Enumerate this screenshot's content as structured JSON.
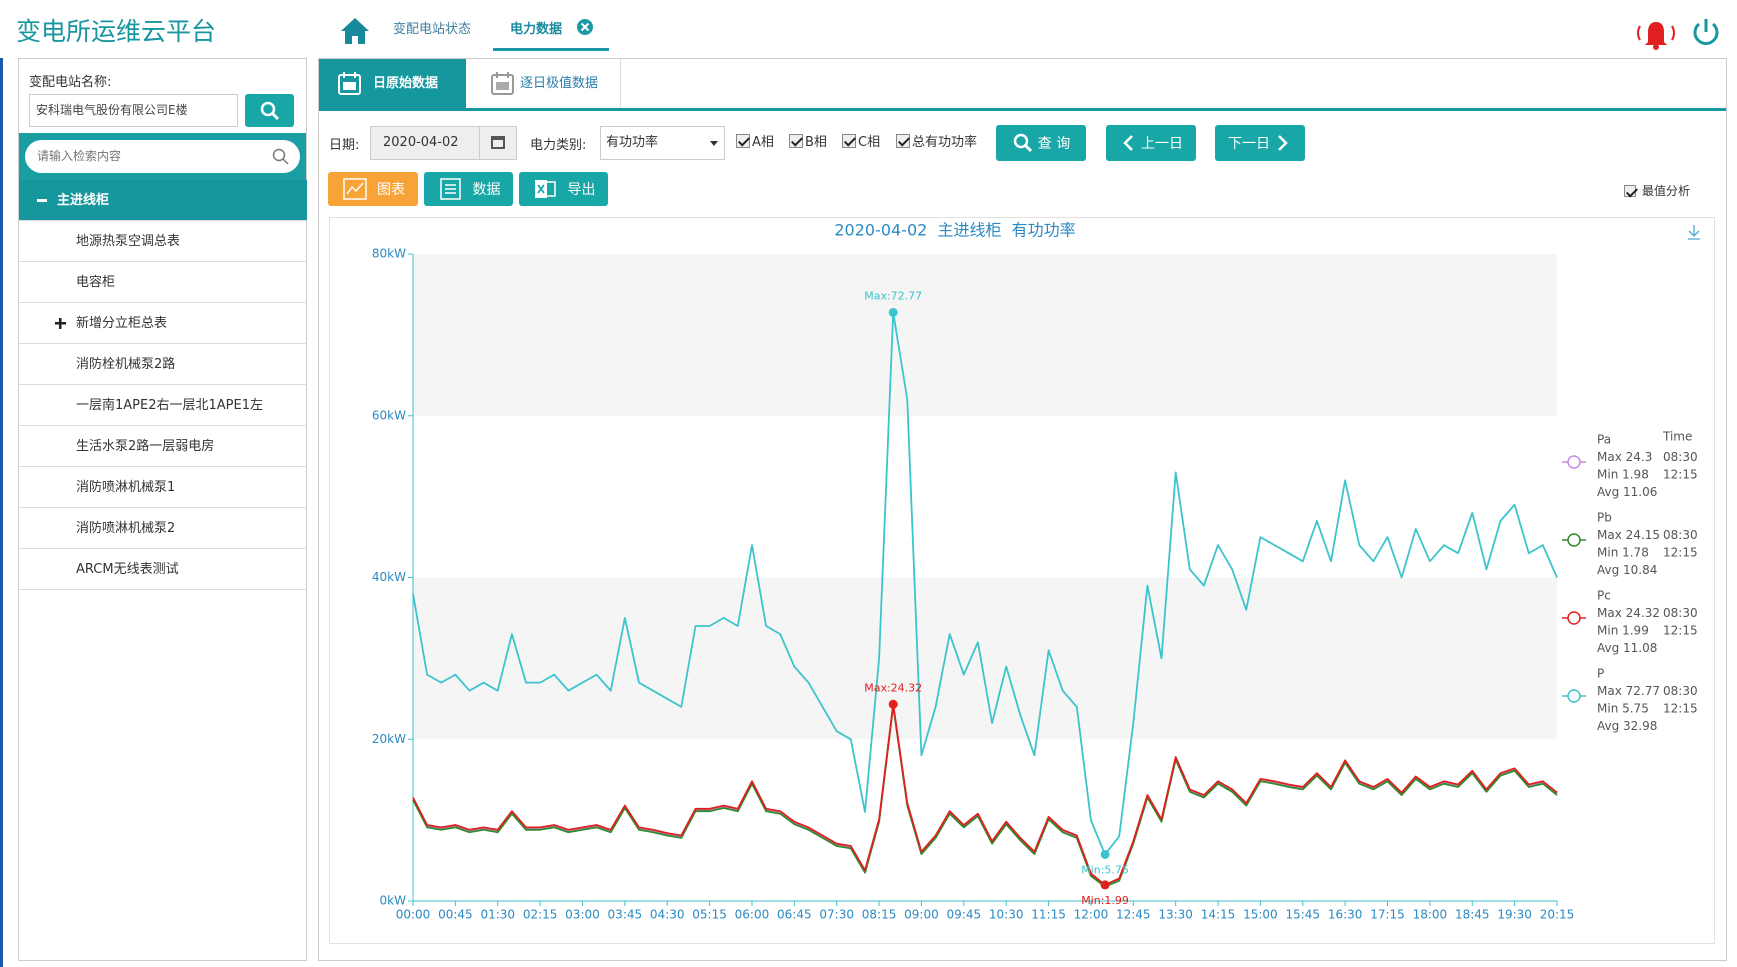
{
  "header": {
    "title": "变电所运维云平台",
    "tabs": [
      "变配电站状态",
      "电力数据"
    ]
  },
  "sidebar": {
    "station_label": "变配电站名称:",
    "station_value": "安科瑞电气股份有限公司E楼",
    "search_placeholder": "请输入检索内容",
    "tree": [
      "主进线柜",
      "地源热泵空调总表",
      "电容柜",
      "新增分立柜总表",
      "消防栓机械泵2路",
      "一层南1APE2右一层北1APE1左",
      "生活水泵2路一层弱电房",
      "消防喷淋机械泵1",
      "消防喷淋机械泵2",
      "ARCM无线表测试"
    ]
  },
  "toolbar": {
    "tabs": [
      "日原始数据",
      "逐日极值数据"
    ],
    "date_label": "日期:",
    "date": "2020-04-02",
    "type_label": "电力类别:",
    "type_value": "有功功率",
    "checks": [
      "A相",
      "B相",
      "C相",
      "总有功功率"
    ],
    "query": "查 询",
    "prev": "上一日",
    "next": "下一日",
    "views": [
      "图表",
      "数据",
      "导出"
    ],
    "extreme": "最值分析"
  },
  "chart_data": {
    "type": "line",
    "title": "2020-04-02  主进线柜  有功功率",
    "categories": [
      "00:00",
      null,
      null,
      "00:45",
      null,
      null,
      "01:30",
      null,
      null,
      "02:15",
      null,
      null,
      "03:00",
      null,
      null,
      "03:45",
      null,
      null,
      "04:30",
      null,
      null,
      "05:15",
      null,
      null,
      "06:00",
      null,
      null,
      "06:45",
      null,
      null,
      "07:30",
      null,
      null,
      "08:15",
      null,
      null,
      "09:00",
      null,
      null,
      "09:45",
      null,
      null,
      "10:30",
      null,
      null,
      "11:15",
      null,
      null,
      "12:00",
      null,
      null,
      "12:45",
      null,
      null,
      "13:30",
      null,
      null,
      "14:15",
      null,
      null,
      "15:00",
      null,
      null,
      "15:45",
      null,
      null,
      "16:30",
      null,
      null,
      "17:15",
      null,
      null,
      "18:00",
      null,
      null,
      "18:45",
      null,
      null,
      "19:30",
      null,
      null,
      "20:15"
    ],
    "ylim": [
      0,
      80
    ],
    "yticks": [
      {
        "value": 0,
        "label": "0kW"
      },
      {
        "value": 20,
        "label": "20kW"
      },
      {
        "value": 40,
        "label": "40kW"
      },
      {
        "value": 60,
        "label": "60kW"
      },
      {
        "value": 80,
        "label": "80kW"
      }
    ],
    "grid": true,
    "legend_position": "right",
    "legend_header": "Time",
    "series": [
      {
        "name": "Pa",
        "color": "#c58be0",
        "stats": {
          "max": "Max 24.3",
          "max_time": "08:30",
          "min": "Min 1.98",
          "min_time": "12:15",
          "avg": "Avg 11.06"
        },
        "values": [
          12.7,
          9.3,
          9,
          9.3,
          8.7,
          9,
          8.7,
          11,
          9,
          9,
          9.3,
          8.7,
          9,
          9.3,
          8.7,
          11.7,
          9,
          8.7,
          8.3,
          8,
          11.3,
          11.3,
          11.7,
          11.3,
          14.7,
          11.3,
          11,
          9.7,
          9,
          8,
          7,
          6.7,
          3.7,
          10,
          24.3,
          12,
          6,
          8,
          11,
          9.3,
          10.7,
          7.3,
          9.7,
          7.7,
          6,
          10.3,
          8.7,
          8,
          3.3,
          1.98,
          2.7,
          7.3,
          13,
          10,
          17.7,
          13.7,
          13,
          14.7,
          13.7,
          12,
          15,
          14.7,
          14.3,
          14,
          15.7,
          14,
          17.3,
          14.7,
          14,
          15,
          13.3,
          15.3,
          14,
          14.7,
          14.3,
          16,
          13.7,
          15.7,
          16.3,
          14.3,
          14.7,
          13.3
        ]
      },
      {
        "name": "Pb",
        "color": "#2e8b2e",
        "stats": {
          "max": "Max 24.15",
          "max_time": "08:30",
          "min": "Min 1.78",
          "min_time": "12:15",
          "avg": "Avg 10.84"
        },
        "values": [
          12.5,
          9.1,
          8.8,
          9.1,
          8.5,
          8.8,
          8.5,
          10.8,
          8.8,
          8.8,
          9.1,
          8.5,
          8.8,
          9.1,
          8.5,
          11.5,
          8.8,
          8.5,
          8.1,
          7.8,
          11.1,
          11.1,
          11.5,
          11.1,
          14.5,
          11.1,
          10.8,
          9.5,
          8.8,
          7.8,
          6.8,
          6.5,
          3.5,
          9.8,
          24.15,
          11.8,
          5.8,
          7.8,
          10.8,
          9.1,
          10.5,
          7.1,
          9.5,
          7.5,
          5.8,
          10.1,
          8.5,
          7.8,
          3.1,
          1.78,
          2.5,
          7.1,
          12.8,
          9.8,
          17.5,
          13.5,
          12.8,
          14.5,
          13.5,
          11.8,
          14.8,
          14.5,
          14.1,
          13.8,
          15.5,
          13.8,
          17.1,
          14.5,
          13.8,
          14.8,
          13.1,
          15.1,
          13.8,
          14.5,
          14.1,
          15.8,
          13.5,
          15.5,
          16.1,
          14.1,
          14.5,
          13.1
        ]
      },
      {
        "name": "Pc",
        "color": "#e0201e",
        "stats": {
          "max": "Max 24.32",
          "max_time": "08:30",
          "min": "Min 1.99",
          "min_time": "12:15",
          "avg": "Avg 11.08"
        },
        "max_label": "Max:24.32",
        "min_label": "Min:1.99",
        "values": [
          12.8,
          9.4,
          9.1,
          9.4,
          8.8,
          9.1,
          8.8,
          11.1,
          9.1,
          9.1,
          9.4,
          8.8,
          9.1,
          9.4,
          8.8,
          11.8,
          9.1,
          8.8,
          8.4,
          8.1,
          11.4,
          11.4,
          11.8,
          11.4,
          14.8,
          11.4,
          11.1,
          9.8,
          9.1,
          8.1,
          7.1,
          6.8,
          3.8,
          10.1,
          24.32,
          12.1,
          6.1,
          8.1,
          11.1,
          9.4,
          10.8,
          7.4,
          9.8,
          7.8,
          6.1,
          10.4,
          8.8,
          8.1,
          3.4,
          1.99,
          2.8,
          7.4,
          13.1,
          10.1,
          17.8,
          13.8,
          13.1,
          14.8,
          13.8,
          12.1,
          15.1,
          14.8,
          14.4,
          14.1,
          15.8,
          14.1,
          17.4,
          14.8,
          14.1,
          15.1,
          13.4,
          15.4,
          14.1,
          14.8,
          14.4,
          16.1,
          13.8,
          15.8,
          16.4,
          14.4,
          14.8,
          13.4
        ]
      },
      {
        "name": "P",
        "color": "#3cc4cc",
        "stats": {
          "max": "Max 72.77",
          "max_time": "08:30",
          "min": "Min 5.75",
          "min_time": "12:15",
          "avg": "Avg 32.98"
        },
        "max_label": "Max:72.77",
        "min_label": "Min:5.75",
        "values": [
          38,
          28,
          27,
          28,
          26,
          27,
          26,
          33,
          27,
          27,
          28,
          26,
          27,
          28,
          26,
          35,
          27,
          26,
          25,
          24,
          34,
          34,
          35,
          34,
          44,
          34,
          33,
          29,
          27,
          24,
          21,
          20,
          11,
          30,
          72.77,
          62,
          18,
          24,
          33,
          28,
          32,
          22,
          29,
          23,
          18,
          31,
          26,
          24,
          10,
          5.75,
          8,
          22,
          39,
          30,
          53,
          41,
          39,
          44,
          41,
          36,
          45,
          44,
          43,
          42,
          47,
          42,
          52,
          44,
          42,
          45,
          40,
          46,
          42,
          44,
          43,
          48,
          41,
          47,
          49,
          43,
          44,
          40
        ]
      }
    ]
  }
}
